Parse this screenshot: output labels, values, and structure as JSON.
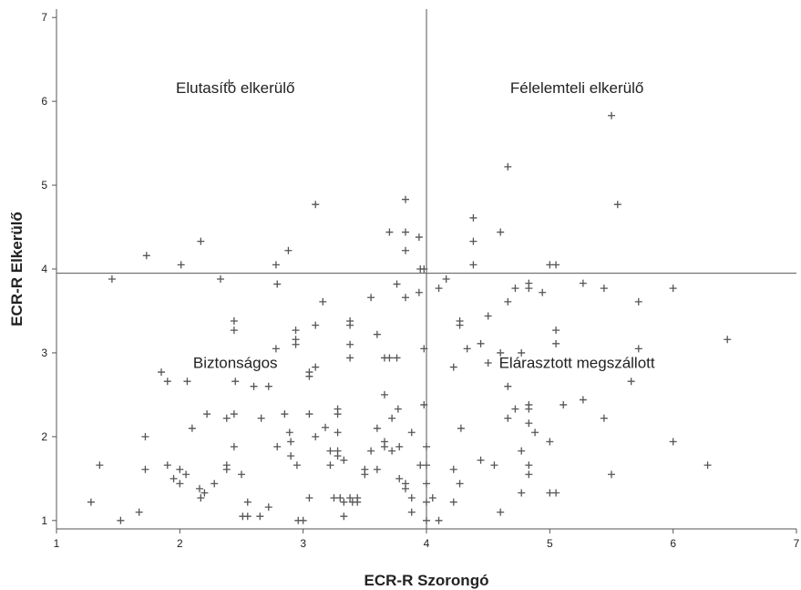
{
  "chart_data": {
    "type": "scatter",
    "title": "",
    "xlabel": "ECR-R Szorongó",
    "ylabel": "ECR-R Elkerülő",
    "xlim": [
      1,
      7
    ],
    "ylim": [
      0.9,
      7.1
    ],
    "xticks": [
      1,
      2,
      3,
      4,
      5,
      6,
      7
    ],
    "yticks": [
      1,
      2,
      3,
      4,
      5,
      6,
      7
    ],
    "marker": "plus",
    "reference_lines": {
      "x": 4.0,
      "y": 3.95
    },
    "quadrant_labels": [
      {
        "text": "Elutasító elkerülő",
        "x": 2.45,
        "y": 6.1
      },
      {
        "text": "Félelemteli elkerülő",
        "x": 5.22,
        "y": 6.1
      },
      {
        "text": "Biztonságos",
        "x": 2.45,
        "y": 2.82
      },
      {
        "text": "Elárasztott megszállott",
        "x": 5.22,
        "y": 2.82
      }
    ],
    "colors": {
      "points": "#555555",
      "axes": "#555555",
      "reference": "#555555"
    },
    "series": [
      {
        "points": [
          [
            1.28,
            1.22
          ],
          [
            1.35,
            1.66
          ],
          [
            1.45,
            3.88
          ],
          [
            1.52,
            1.0
          ],
          [
            1.67,
            1.1
          ],
          [
            1.72,
            2.0
          ],
          [
            1.73,
            4.16
          ],
          [
            1.72,
            1.61
          ],
          [
            1.85,
            2.77
          ],
          [
            1.9,
            2.66
          ],
          [
            1.9,
            1.66
          ],
          [
            1.95,
            1.5
          ],
          [
            2.0,
            1.61
          ],
          [
            2.0,
            1.44
          ],
          [
            2.01,
            4.05
          ],
          [
            2.06,
            2.66
          ],
          [
            2.05,
            1.55
          ],
          [
            2.1,
            2.1
          ],
          [
            2.16,
            1.38
          ],
          [
            2.17,
            1.27
          ],
          [
            2.17,
            4.33
          ],
          [
            2.2,
            1.33
          ],
          [
            2.22,
            2.27
          ],
          [
            2.28,
            1.44
          ],
          [
            2.33,
            3.88
          ],
          [
            2.38,
            1.66
          ],
          [
            2.38,
            1.61
          ],
          [
            2.38,
            2.22
          ],
          [
            2.4,
            6.22
          ],
          [
            2.44,
            3.38
          ],
          [
            2.44,
            3.27
          ],
          [
            2.44,
            2.27
          ],
          [
            2.44,
            1.88
          ],
          [
            2.45,
            2.66
          ],
          [
            2.5,
            1.55
          ],
          [
            2.51,
            1.05
          ],
          [
            2.55,
            1.22
          ],
          [
            2.55,
            1.05
          ],
          [
            2.6,
            2.6
          ],
          [
            2.65,
            1.05
          ],
          [
            2.66,
            2.22
          ],
          [
            2.72,
            2.6
          ],
          [
            2.72,
            1.16
          ],
          [
            2.78,
            3.05
          ],
          [
            2.78,
            4.05
          ],
          [
            2.79,
            3.82
          ],
          [
            2.79,
            1.88
          ],
          [
            2.85,
            2.27
          ],
          [
            2.88,
            4.22
          ],
          [
            2.89,
            2.05
          ],
          [
            2.9,
            1.94
          ],
          [
            2.9,
            1.77
          ],
          [
            2.94,
            3.27
          ],
          [
            2.94,
            3.16
          ],
          [
            2.94,
            3.1
          ],
          [
            2.95,
            1.66
          ],
          [
            2.96,
            1.0
          ],
          [
            3.0,
            1.0
          ],
          [
            3.05,
            2.77
          ],
          [
            3.05,
            2.72
          ],
          [
            3.05,
            2.27
          ],
          [
            3.05,
            1.27
          ],
          [
            3.1,
            4.77
          ],
          [
            3.1,
            3.33
          ],
          [
            3.1,
            2.83
          ],
          [
            3.1,
            2.0
          ],
          [
            3.16,
            3.61
          ],
          [
            3.18,
            2.11
          ],
          [
            3.22,
            1.83
          ],
          [
            3.22,
            1.66
          ],
          [
            3.25,
            1.27
          ],
          [
            3.28,
            2.33
          ],
          [
            3.28,
            2.27
          ],
          [
            3.28,
            2.05
          ],
          [
            3.28,
            1.83
          ],
          [
            3.28,
            1.77
          ],
          [
            3.3,
            1.27
          ],
          [
            3.33,
            1.72
          ],
          [
            3.33,
            1.22
          ],
          [
            3.33,
            1.05
          ],
          [
            3.38,
            3.38
          ],
          [
            3.38,
            3.33
          ],
          [
            3.38,
            3.1
          ],
          [
            3.38,
            2.94
          ],
          [
            3.38,
            1.27
          ],
          [
            3.4,
            1.22
          ],
          [
            3.44,
            1.27
          ],
          [
            3.44,
            1.22
          ],
          [
            3.5,
            1.61
          ],
          [
            3.5,
            1.55
          ],
          [
            3.55,
            3.66
          ],
          [
            3.55,
            1.83
          ],
          [
            3.6,
            3.22
          ],
          [
            3.6,
            2.1
          ],
          [
            3.6,
            1.61
          ],
          [
            3.66,
            2.94
          ],
          [
            3.66,
            2.5
          ],
          [
            3.66,
            1.94
          ],
          [
            3.66,
            1.88
          ],
          [
            3.7,
            4.44
          ],
          [
            3.7,
            2.94
          ],
          [
            3.72,
            2.22
          ],
          [
            3.72,
            1.83
          ],
          [
            3.76,
            3.82
          ],
          [
            3.76,
            2.94
          ],
          [
            3.77,
            2.33
          ],
          [
            3.78,
            1.5
          ],
          [
            3.78,
            1.88
          ],
          [
            3.83,
            4.83
          ],
          [
            3.83,
            4.44
          ],
          [
            3.83,
            4.22
          ],
          [
            3.83,
            3.66
          ],
          [
            3.83,
            1.44
          ],
          [
            3.83,
            1.38
          ],
          [
            3.88,
            2.05
          ],
          [
            3.88,
            1.27
          ],
          [
            3.88,
            1.1
          ],
          [
            3.94,
            4.38
          ],
          [
            3.94,
            3.72
          ],
          [
            3.95,
            4.0
          ],
          [
            3.95,
            1.66
          ],
          [
            3.98,
            4.0
          ],
          [
            3.98,
            3.05
          ],
          [
            3.98,
            2.38
          ],
          [
            4.0,
            1.88
          ],
          [
            4.0,
            1.66
          ],
          [
            4.0,
            1.44
          ],
          [
            4.0,
            1.22
          ],
          [
            4.0,
            1.0
          ],
          [
            4.05,
            1.27
          ],
          [
            4.1,
            3.77
          ],
          [
            4.1,
            1.0
          ],
          [
            4.16,
            3.88
          ],
          [
            4.22,
            2.83
          ],
          [
            4.22,
            1.61
          ],
          [
            4.22,
            1.22
          ],
          [
            4.27,
            3.38
          ],
          [
            4.27,
            3.33
          ],
          [
            4.28,
            2.1
          ],
          [
            4.27,
            1.44
          ],
          [
            4.33,
            3.05
          ],
          [
            4.38,
            4.61
          ],
          [
            4.38,
            4.33
          ],
          [
            4.38,
            4.05
          ],
          [
            4.44,
            3.11
          ],
          [
            4.44,
            1.72
          ],
          [
            4.5,
            3.44
          ],
          [
            4.5,
            2.88
          ],
          [
            4.55,
            1.66
          ],
          [
            4.6,
            4.44
          ],
          [
            4.6,
            3.0
          ],
          [
            4.6,
            1.1
          ],
          [
            4.66,
            5.22
          ],
          [
            4.66,
            3.61
          ],
          [
            4.66,
            2.6
          ],
          [
            4.66,
            2.22
          ],
          [
            4.72,
            3.77
          ],
          [
            4.72,
            2.33
          ],
          [
            4.77,
            3.0
          ],
          [
            4.77,
            1.83
          ],
          [
            4.77,
            1.33
          ],
          [
            4.83,
            3.83
          ],
          [
            4.83,
            3.77
          ],
          [
            4.83,
            2.38
          ],
          [
            4.83,
            2.33
          ],
          [
            4.83,
            2.16
          ],
          [
            4.83,
            1.66
          ],
          [
            4.83,
            1.55
          ],
          [
            4.88,
            2.05
          ],
          [
            4.94,
            3.72
          ],
          [
            5.0,
            4.05
          ],
          [
            5.0,
            1.94
          ],
          [
            5.0,
            1.33
          ],
          [
            5.05,
            4.05
          ],
          [
            5.05,
            3.27
          ],
          [
            5.05,
            3.11
          ],
          [
            5.05,
            1.33
          ],
          [
            5.11,
            2.38
          ],
          [
            5.27,
            3.83
          ],
          [
            5.27,
            2.44
          ],
          [
            5.44,
            3.77
          ],
          [
            5.44,
            2.22
          ],
          [
            5.5,
            5.83
          ],
          [
            5.5,
            1.55
          ],
          [
            5.55,
            4.77
          ],
          [
            5.66,
            2.66
          ],
          [
            5.72,
            3.61
          ],
          [
            5.72,
            3.05
          ],
          [
            6.0,
            3.77
          ],
          [
            6.0,
            1.94
          ],
          [
            6.28,
            1.66
          ],
          [
            6.44,
            3.16
          ]
        ]
      }
    ]
  }
}
